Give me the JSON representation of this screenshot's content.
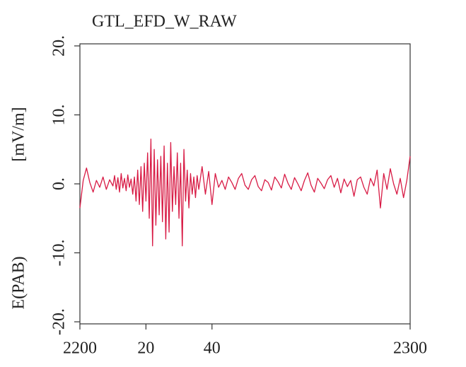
{
  "chart_data": {
    "type": "line",
    "title": "GTL_EFD_W_RAW",
    "ylabel": [
      "E(PAB)",
      "[mV/m]"
    ],
    "xlim": [
      2200,
      2300
    ],
    "xticks": [
      2200,
      {
        "value": 2220,
        "label": "20"
      },
      {
        "value": 2240,
        "label": "40"
      },
      2300
    ],
    "ylim": [
      -20.3,
      20.3
    ],
    "yticks": [
      {
        "value": -20,
        "label": "-20."
      },
      {
        "value": -10,
        "label": "-10."
      },
      {
        "value": 0,
        "label": "0."
      },
      {
        "value": 10,
        "label": "10."
      },
      {
        "value": 20,
        "label": "20."
      }
    ],
    "grid": false,
    "x": [
      2200,
      2201,
      2202,
      2203,
      2204,
      2205,
      2206,
      2207,
      2208,
      2209,
      2210,
      2210.5,
      2211,
      2211.5,
      2212,
      2212.5,
      2213,
      2213.5,
      2214,
      2214.5,
      2215,
      2215.5,
      2216,
      2216.5,
      2217,
      2217.5,
      2218,
      2218.5,
      2219,
      2219.5,
      2220,
      2220.5,
      2221,
      2221.5,
      2222,
      2222.5,
      2223,
      2223.5,
      2224,
      2224.5,
      2225,
      2225.5,
      2226,
      2226.5,
      2227,
      2227.5,
      2228,
      2228.5,
      2229,
      2229.5,
      2230,
      2230.5,
      2231,
      2231.5,
      2232,
      2232.5,
      2233,
      2233.5,
      2234,
      2234.5,
      2235,
      2235.5,
      2236,
      2237,
      2238,
      2239,
      2240,
      2241,
      2242,
      2243,
      2244,
      2245,
      2246,
      2247,
      2248,
      2249,
      2250,
      2251,
      2252,
      2253,
      2254,
      2255,
      2256,
      2257,
      2258,
      2259,
      2260,
      2261,
      2262,
      2263,
      2264,
      2265,
      2266,
      2267,
      2268,
      2269,
      2270,
      2271,
      2272,
      2273,
      2274,
      2275,
      2276,
      2277,
      2278,
      2279,
      2280,
      2281,
      2282,
      2283,
      2284,
      2285,
      2286,
      2287,
      2288,
      2289,
      2290,
      2291,
      2292,
      2293,
      2294,
      2295,
      2296,
      2297,
      2298,
      2299,
      2300
    ],
    "series": [
      {
        "color": "#d81b45",
        "values": [
          -3.5,
          0.5,
          2.3,
          0.2,
          -1.2,
          0.5,
          -0.5,
          1.0,
          -0.8,
          0.6,
          -0.3,
          1.2,
          -0.8,
          0.9,
          -1.2,
          1.5,
          -0.6,
          0.8,
          -1.0,
          1.3,
          -0.5,
          0.7,
          -1.5,
          1.0,
          -2.5,
          2.0,
          -3.0,
          2.5,
          -4.0,
          3.0,
          -2.5,
          4.5,
          -5.0,
          6.5,
          -9.0,
          5.0,
          -6.0,
          3.5,
          -4.5,
          4.0,
          -5.5,
          5.5,
          -8.0,
          3.0,
          -7.0,
          6.0,
          -4.0,
          2.5,
          -3.0,
          4.5,
          -5.0,
          3.0,
          -9.0,
          5.0,
          -2.5,
          2.0,
          -3.5,
          1.5,
          -1.5,
          1.0,
          -2.0,
          1.2,
          -0.8,
          2.5,
          -1.5,
          1.8,
          -3.0,
          1.5,
          -0.5,
          0.5,
          -0.8,
          1.0,
          0.2,
          -0.8,
          0.8,
          1.5,
          -0.2,
          -0.8,
          0.6,
          1.2,
          -0.4,
          -1.0,
          0.6,
          0.2,
          -0.9,
          1.0,
          0.3,
          -0.6,
          1.4,
          0.1,
          -0.8,
          0.9,
          0.0,
          -1.0,
          0.5,
          1.6,
          -0.2,
          -1.2,
          0.8,
          0.1,
          -0.7,
          0.6,
          1.2,
          -0.5,
          0.8,
          -1.3,
          0.7,
          -0.4,
          0.5,
          -1.8,
          0.6,
          1.0,
          -0.5,
          -1.5,
          0.8,
          -0.3,
          2.0,
          -3.5,
          1.5,
          -0.8,
          2.2,
          0.0,
          -1.5,
          0.8,
          -2.0,
          0.5,
          4.0
        ]
      }
    ]
  }
}
